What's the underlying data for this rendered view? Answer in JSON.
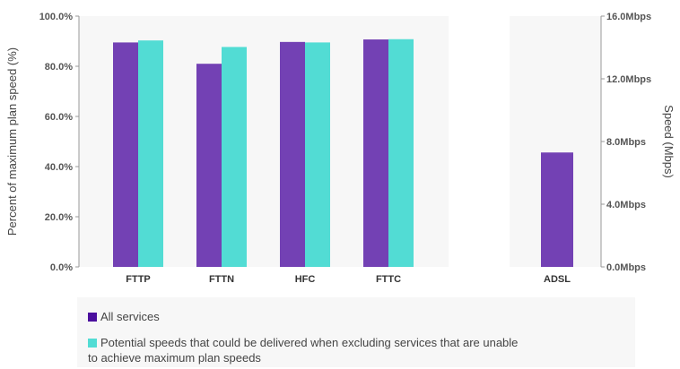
{
  "chart_data": {
    "type": "bar",
    "panels": [
      {
        "categories": [
          "FTTP",
          "FTTN",
          "HFC",
          "FTTC"
        ],
        "series": [
          {
            "name": "All services",
            "values": [
              89.5,
              81.0,
              89.7,
              90.7
            ]
          },
          {
            "name": "Potential speeds that could be delivered when excluding services that are unable to achieve maximum plan speeds",
            "values": [
              90.3,
              87.7,
              89.5,
              90.8
            ]
          }
        ],
        "ylabel": "Percent of maximum plan speed (%)",
        "ylim": [
          0,
          100
        ],
        "yticks": [
          "0.0%",
          "20.0%",
          "40.0%",
          "60.0%",
          "80.0%",
          "100.0%"
        ]
      },
      {
        "categories": [
          "ADSL"
        ],
        "series": [
          {
            "name": "All services",
            "values": [
              7.3
            ]
          }
        ],
        "ylabel": "Speed (Mbps)",
        "ylim": [
          0,
          16
        ],
        "yticks": [
          "0.0Mbps",
          "4.0Mbps",
          "8.0Mbps",
          "12.0Mbps",
          "16.0Mbps"
        ]
      }
    ],
    "colors": {
      "all": "#7341b4",
      "potential": "#52dcd4"
    },
    "grid": false,
    "legend_position": "bottom"
  },
  "legend": {
    "items": [
      {
        "label": "All services",
        "color": "#7341b4"
      },
      {
        "label": "Potential speeds that could be delivered when excluding services that are unable to achieve maximum plan speeds",
        "color": "#52dcd4"
      }
    ]
  }
}
